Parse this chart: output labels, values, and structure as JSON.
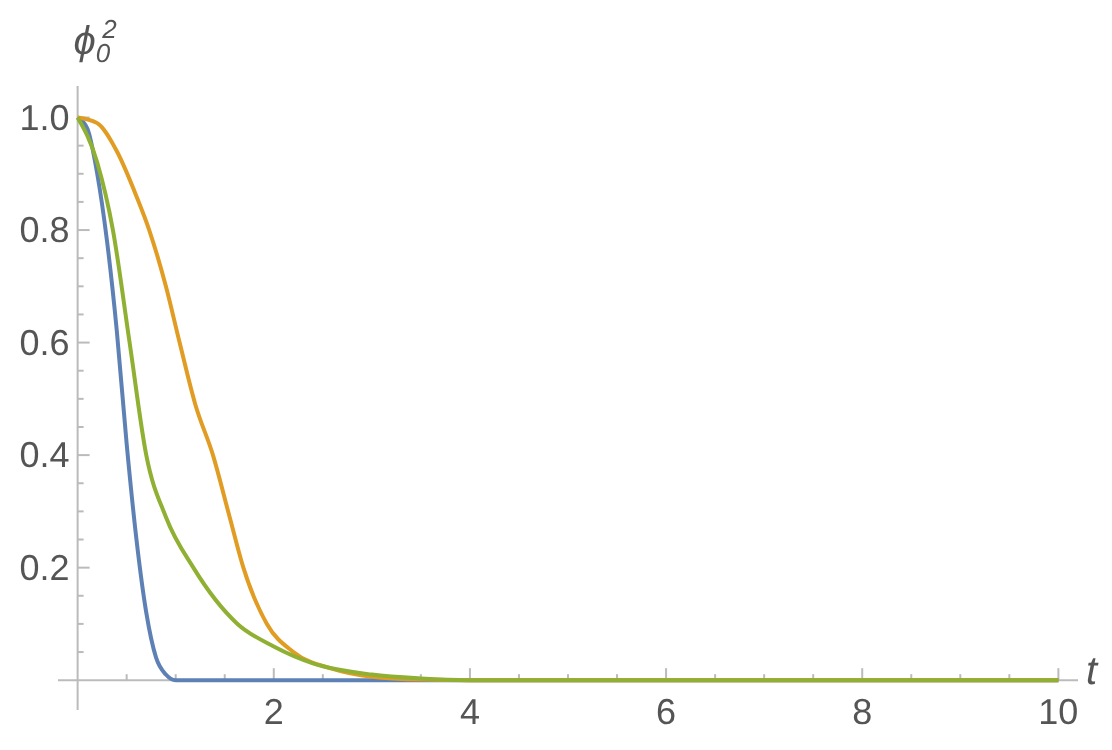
{
  "chart_data": {
    "type": "line",
    "xlabel": "t",
    "ylabel": "ϕ$_{0}$$^{2}$",
    "xlim": [
      -0.2,
      10.2
    ],
    "ylim": [
      -0.053,
      1.056
    ],
    "xticks": [
      {
        "value": 0.5,
        "label": null
      },
      {
        "value": 1,
        "label": null
      },
      {
        "value": 1.5,
        "label": null
      },
      2,
      {
        "value": 2.5,
        "label": null
      },
      {
        "value": 3,
        "label": null
      },
      {
        "value": 3.5,
        "label": null
      },
      4,
      {
        "value": 4.5,
        "label": null
      },
      {
        "value": 5,
        "label": null
      },
      {
        "value": 5.5,
        "label": null
      },
      6,
      {
        "value": 6.5,
        "label": null
      },
      {
        "value": 7,
        "label": null
      },
      {
        "value": 7.5,
        "label": null
      },
      8,
      {
        "value": 8.5,
        "label": null
      },
      {
        "value": 9,
        "label": null
      },
      {
        "value": 9.5,
        "label": null
      },
      10
    ],
    "yticks": [
      {
        "value": 0.05,
        "label": null
      },
      {
        "value": 0.1,
        "label": null
      },
      {
        "value": 0.15,
        "label": null
      },
      0.2,
      {
        "value": 0.25,
        "label": null
      },
      {
        "value": 0.3,
        "label": null
      },
      {
        "value": 0.35,
        "label": null
      },
      0.4,
      {
        "value": 0.45,
        "label": null
      },
      {
        "value": 0.5,
        "label": null
      },
      {
        "value": 0.55,
        "label": null
      },
      0.6,
      {
        "value": 0.65,
        "label": null
      },
      {
        "value": 0.7,
        "label": null
      },
      {
        "value": 0.75,
        "label": null
      },
      0.8,
      {
        "value": 0.85,
        "label": null
      },
      {
        "value": 0.9,
        "label": null
      },
      {
        "value": 0.95,
        "label": null
      },
      {
        "value": 1,
        "label": "1.0"
      }
    ],
    "grid": false,
    "series": [
      {
        "color": "#5e81b5",
        "x": [
          0,
          0.1,
          0.2,
          0.3,
          0.4,
          0.5,
          0.6,
          0.7,
          0.8,
          0.9,
          1,
          10
        ],
        "values": [
          1,
          0.98,
          0.9,
          0.78,
          0.62,
          0.42,
          0.25,
          0.12,
          0.04,
          0.01,
          0,
          0
        ]
      },
      {
        "color": "#e19c24",
        "x": [
          0,
          0.2,
          0.4,
          0.6,
          0.73,
          0.9,
          1.04,
          1.2,
          1.38,
          1.55,
          1.69,
          1.93,
          2.2,
          2.6,
          3,
          3.5,
          4,
          10
        ],
        "values": [
          1,
          0.99,
          0.94,
          0.86,
          0.8,
          0.7,
          0.6,
          0.49,
          0.4,
          0.29,
          0.2,
          0.1,
          0.05,
          0.02,
          0.006,
          0.001,
          0,
          0
        ]
      },
      {
        "color": "#8fb032",
        "x": [
          0,
          0.2,
          0.36,
          0.53,
          0.7,
          0.9,
          1.18,
          1.63,
          2,
          2.4,
          3,
          3.5,
          4,
          10
        ],
        "values": [
          1,
          0.92,
          0.8,
          0.6,
          0.4,
          0.29,
          0.2,
          0.1,
          0.06,
          0.03,
          0.01,
          0.003,
          0,
          0
        ]
      }
    ]
  }
}
